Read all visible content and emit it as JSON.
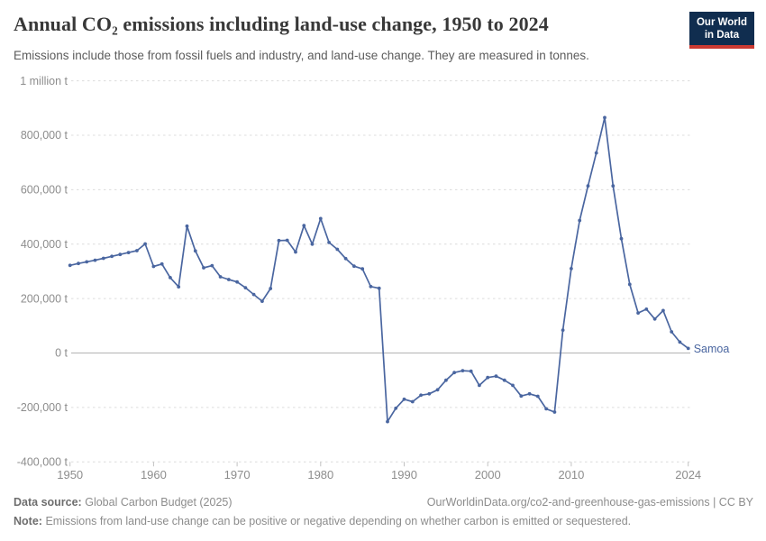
{
  "header": {
    "title": "Annual CO₂ emissions including land-use change, 1950 to 2024",
    "subtitle": "Emissions include those from fossil fuels and industry, and land-use change. They are measured in tonnes.",
    "logo": {
      "line1": "Our World",
      "line2": "in Data"
    }
  },
  "chart_data": {
    "type": "line",
    "title": "Annual CO₂ emissions including land-use change, 1950 to 2024",
    "unit": "t",
    "grid": true,
    "xlim": [
      1950,
      2024
    ],
    "ylim": [
      -400000,
      1000000
    ],
    "years": {
      "start": 1950,
      "end": 2024,
      "step": 1
    },
    "series": [
      {
        "name": "Samoa",
        "values": [
          322000,
          329000,
          335000,
          341000,
          348000,
          355000,
          362000,
          369000,
          376000,
          401000,
          318000,
          327000,
          277000,
          243000,
          466000,
          375000,
          313000,
          321000,
          280000,
          270000,
          261000,
          240000,
          215000,
          190000,
          237000,
          413000,
          414000,
          371000,
          468000,
          400000,
          494000,
          406000,
          381000,
          347000,
          319000,
          309000,
          244000,
          238000,
          -252000,
          -203000,
          -170000,
          -179000,
          -155000,
          -150000,
          -135000,
          -100000,
          -72000,
          -65000,
          -67000,
          -119000,
          -90000,
          -85000,
          -100000,
          -119000,
          -158000,
          -150000,
          -159000,
          -205000,
          -217000,
          84000,
          310000,
          487000,
          614000,
          735000,
          865000,
          614000,
          420000,
          252000,
          147000,
          161000,
          125000,
          156000,
          78000,
          40000,
          17000
        ]
      }
    ],
    "x_ticks": [
      {
        "label": "1950",
        "year": 1950
      },
      {
        "label": "1960",
        "year": 1960
      },
      {
        "label": "1970",
        "year": 1970
      },
      {
        "label": "1980",
        "year": 1980
      },
      {
        "label": "1990",
        "year": 1990
      },
      {
        "label": "2000",
        "year": 2000
      },
      {
        "label": "2010",
        "year": 2010
      },
      {
        "label": "2024",
        "year": 2024
      }
    ],
    "y_ticks": [
      {
        "label": "1 million t",
        "value": 1000000
      },
      {
        "label": "800,000 t",
        "value": 800000
      },
      {
        "label": "600,000 t",
        "value": 600000
      },
      {
        "label": "400,000 t",
        "value": 400000
      },
      {
        "label": "200,000 t",
        "value": 200000
      },
      {
        "label": "0 t",
        "value": 0
      },
      {
        "label": "-200,000 t",
        "value": -200000
      },
      {
        "label": "-400,000 t",
        "value": -400000
      }
    ],
    "series_label": "Samoa",
    "legend_position": "end-of-line",
    "colors": {
      "line": "#4a66a0",
      "grid": "#dcdcdc",
      "zero_line": "#b3b3b3",
      "tick": "#c2c2c2",
      "axis_text": "#8d8d8d"
    }
  },
  "footer": {
    "data_source_label": "Data source:",
    "data_source_value": "Global Carbon Budget (2025)",
    "url_text": "OurWorldinData.org/co2-and-greenhouse-gas-emissions | CC BY",
    "note_label": "Note:",
    "note_value": "Emissions from land-use change can be positive or negative depending on whether carbon is emitted or sequestered."
  }
}
